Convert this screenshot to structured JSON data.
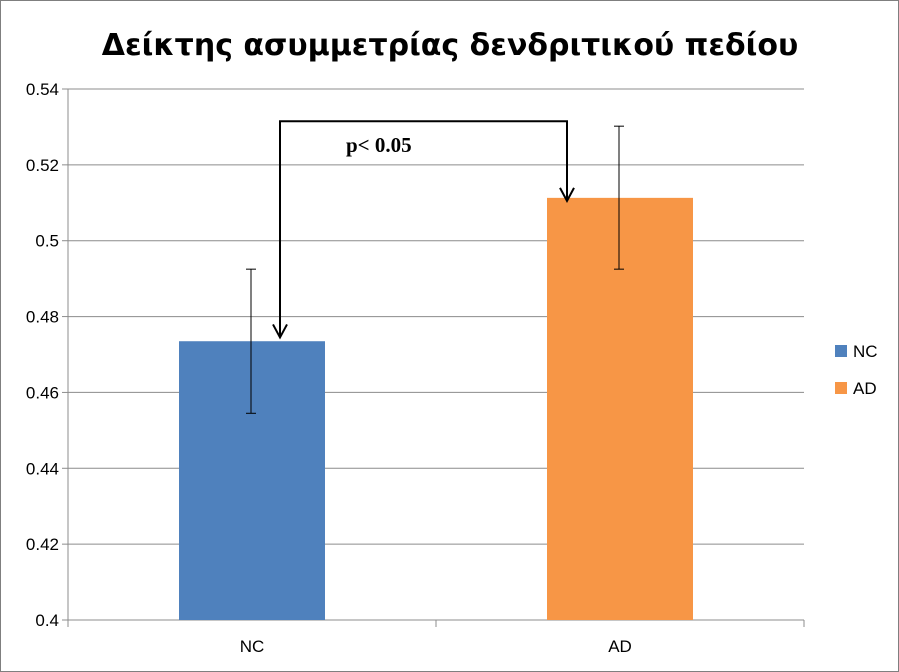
{
  "chart_data": {
    "type": "bar",
    "title": "Δείκτης ασυμμετρίας δενδριτικού πεδίου",
    "xlabel": "",
    "ylabel": "",
    "categories": [
      "NC",
      "AD"
    ],
    "values": [
      0.4735,
      0.5113
    ],
    "error_low": [
      0.4545,
      0.4925
    ],
    "error_high": [
      0.4925,
      0.5302
    ],
    "colors": [
      "#4f81bd",
      "#f79646"
    ],
    "ylim": [
      0.4,
      0.54
    ],
    "yticks": [
      0.4,
      0.42,
      0.44,
      0.46,
      0.48,
      0.5,
      0.52,
      0.54
    ],
    "ytick_labels": [
      "0.4",
      "0.42",
      "0.44",
      "0.46",
      "0.48",
      "0.5",
      "0.52",
      "0.54"
    ],
    "grid": true,
    "legend": {
      "position": "right",
      "entries": [
        {
          "label": "NC",
          "color": "#4f81bd"
        },
        {
          "label": "AD",
          "color": "#f79646"
        }
      ]
    },
    "annotation": {
      "text": "p< 0.05",
      "bracket_top": 0.5315,
      "from_value": 0.4745,
      "to_value": 0.5105
    }
  }
}
